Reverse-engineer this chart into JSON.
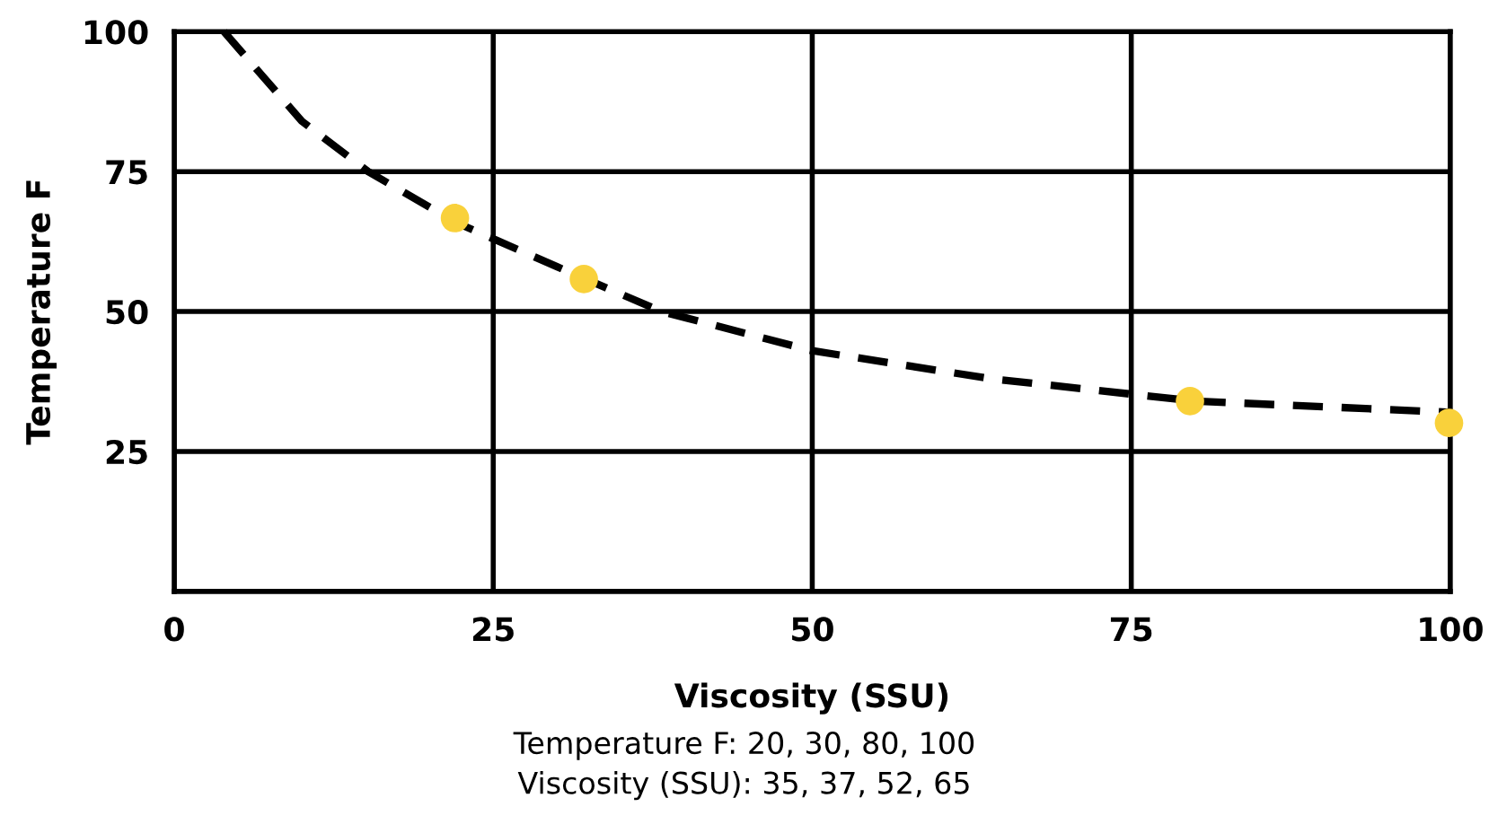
{
  "chart_data": {
    "type": "scatter",
    "xlabel": "Viscosity (SSU)",
    "ylabel": "Temperature F",
    "xlim": [
      0,
      100
    ],
    "xticks": [
      0,
      25,
      50,
      75,
      100
    ],
    "ylim": [
      0,
      100
    ],
    "yticks": [
      25,
      50,
      75,
      100
    ],
    "grid": true,
    "series": [
      {
        "type": "line",
        "color": "#000000",
        "line_style": "dashed",
        "marker": "none",
        "x": [
          3.9,
          10,
          15.2,
          22,
          30,
          38.2,
          50,
          64,
          80,
          100
        ],
        "values": [
          100,
          84,
          75,
          66,
          58,
          50,
          43,
          38,
          34,
          32
        ]
      },
      {
        "color": "#f9d13b",
        "marker": "circle",
        "x": [
          22,
          32.1,
          79.6,
          99.9
        ],
        "values": [
          66.7,
          55.8,
          34,
          30.1
        ]
      }
    ],
    "annotations": [
      "Temperature F: 20, 30, 80, 100",
      "Viscosity (SSU): 35, 37, 52, 65"
    ]
  }
}
